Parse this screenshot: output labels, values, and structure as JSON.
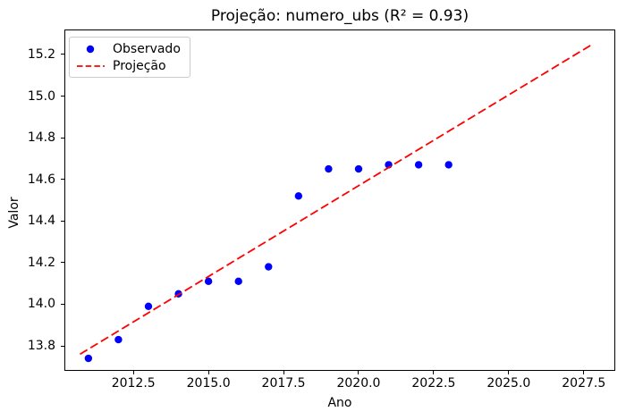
{
  "figure": {
    "title": "Projeção: numero_ubs (R² = 0.93)",
    "xlabel": "Ano",
    "ylabel": "Valor",
    "background": "#ffffff"
  },
  "legend": {
    "position": "upper left",
    "items": [
      {
        "label": "Observado",
        "marker": "dot",
        "color": "#0000ff"
      },
      {
        "label": "Projeção",
        "marker": "dashed-line",
        "color": "#ff0000"
      }
    ]
  },
  "chart_data": {
    "type": "scatter",
    "title": "Projeção: numero_ubs (R² = 0.93)",
    "xlabel": "Ano",
    "ylabel": "Valor",
    "r_squared": 0.93,
    "grid": false,
    "legend_position": "upper left",
    "xlim": [
      2010.2,
      2028.55
    ],
    "ylim": [
      13.68,
      15.32
    ],
    "x_ticks": [
      2012.5,
      2015.0,
      2017.5,
      2020.0,
      2022.5,
      2025.0,
      2027.5
    ],
    "y_ticks": [
      13.8,
      14.0,
      14.2,
      14.4,
      14.6,
      14.8,
      15.0,
      15.2
    ],
    "series": [
      {
        "name": "Observado",
        "kind": "scatter",
        "color": "#0000ff",
        "x": [
          2011,
          2012,
          2013,
          2014,
          2015,
          2016,
          2017,
          2018,
          2019,
          2020,
          2021,
          2022,
          2023
        ],
        "y": [
          13.74,
          13.83,
          13.99,
          14.05,
          14.11,
          14.11,
          14.18,
          14.52,
          14.65,
          14.65,
          14.67,
          14.67,
          14.67
        ]
      },
      {
        "name": "Projeção",
        "kind": "line",
        "style": "dashed",
        "color": "#ff0000",
        "x": [
          2010.72,
          2027.8
        ],
        "y": [
          13.76,
          15.25
        ]
      }
    ]
  }
}
